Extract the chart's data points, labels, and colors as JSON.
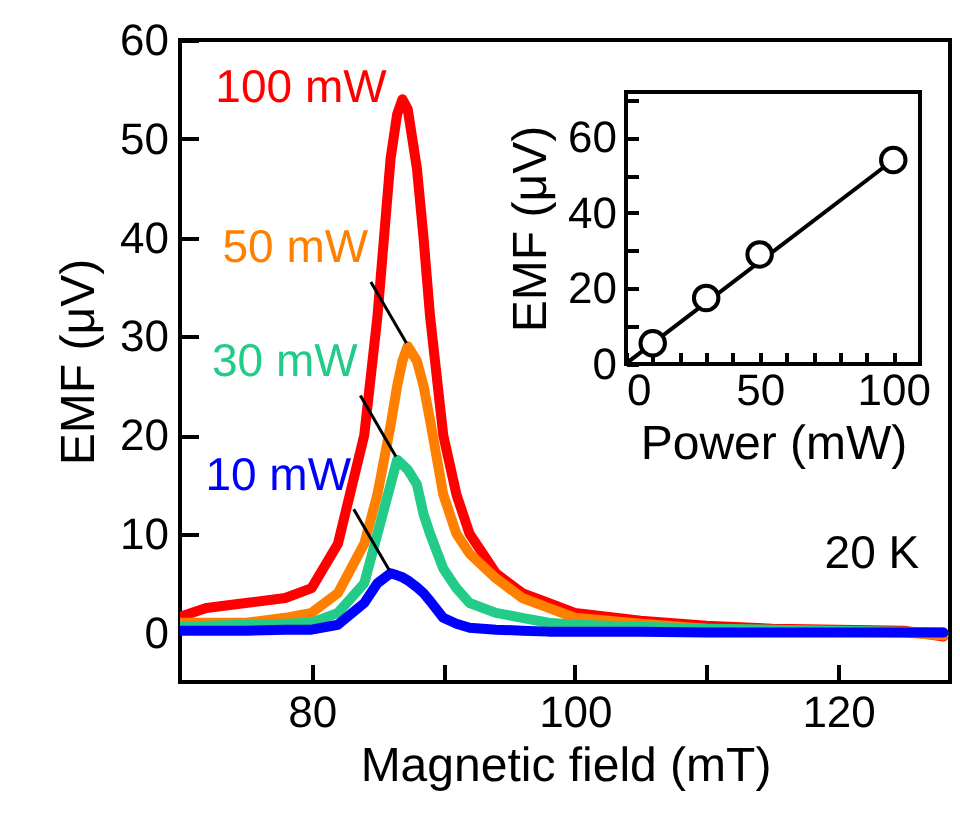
{
  "chart_data": [
    {
      "type": "line",
      "xlabel": "Magnetic field (mT)",
      "ylabel": "EMF (μV)",
      "xlim": [
        70,
        128.5
      ],
      "ylim": [
        -5,
        60
      ],
      "xticks": [
        80,
        {
          "value": 90,
          "label": null
        },
        100,
        {
          "value": 110,
          "label": null
        },
        120
      ],
      "yticks": [
        0,
        10,
        20,
        30,
        40,
        50,
        60
      ],
      "x": [
        70,
        72,
        75,
        78,
        80,
        82,
        84,
        85,
        86,
        86.5,
        86.9,
        87.3,
        88,
        88.5,
        89,
        90,
        91,
        92,
        94,
        96,
        98,
        100,
        105,
        110,
        115,
        120,
        125,
        128
      ],
      "series": [
        {
          "name": "100 mW",
          "color": "#ff0000",
          "values": [
            1.6,
            2.5,
            3,
            3.5,
            4.5,
            9,
            20,
            32,
            48,
            52.5,
            54,
            53,
            47,
            40,
            32,
            20,
            14,
            10,
            6,
            4,
            3,
            2,
            1.2,
            0.7,
            0.4,
            0.3,
            0.2,
            -0.4
          ]
        },
        {
          "name": "50 mW",
          "color": "#ff8000",
          "values": [
            1,
            1,
            1,
            1.5,
            2,
            4,
            9,
            14,
            21,
            25,
            27.5,
            29,
            27.5,
            25,
            21.5,
            14,
            10,
            8,
            5.5,
            3.5,
            2.5,
            1.5,
            0.9,
            0.4,
            0.2,
            0.1,
            0,
            -0.3
          ]
        },
        {
          "name": "30 mW",
          "color": "#22cc88",
          "values": [
            0.6,
            0.7,
            0.8,
            0.9,
            1,
            2,
            5,
            10,
            15,
            17.5,
            17,
            16.5,
            15,
            12,
            10,
            6.5,
            4.5,
            3,
            2,
            1.5,
            1,
            0.8,
            0.6,
            0.4,
            0.3,
            0.2,
            0.1,
            0
          ]
        },
        {
          "name": "10 mW",
          "color": "#0000ff",
          "values": [
            0.2,
            0.2,
            0.2,
            0.3,
            0.3,
            0.8,
            3,
            5,
            6,
            5.8,
            5.6,
            5.3,
            4.6,
            4,
            3.2,
            1.5,
            0.9,
            0.5,
            0.3,
            0.2,
            0.1,
            0.1,
            0.1,
            0,
            0,
            0,
            0,
            0
          ]
        }
      ],
      "line_style": "solid",
      "annotations": [
        "20 K"
      ]
    },
    {
      "type": "scatter",
      "xlabel": "Power (mW)",
      "ylabel": "EMF (μV)",
      "xlim": [
        0,
        110
      ],
      "ylim": [
        0,
        72
      ],
      "xticks": [
        0,
        {
          "value": 10,
          "label": null
        },
        {
          "value": 20,
          "label": null
        },
        {
          "value": 30,
          "label": null
        },
        {
          "value": 40,
          "label": null
        },
        50,
        {
          "value": 60,
          "label": null
        },
        {
          "value": 70,
          "label": null
        },
        {
          "value": 80,
          "label": null
        },
        {
          "value": 90,
          "label": null
        },
        100
      ],
      "yticks": [
        0,
        {
          "value": 10,
          "label": null
        },
        20,
        {
          "value": 30,
          "label": null
        },
        40,
        {
          "value": 50,
          "label": null
        },
        60,
        {
          "value": 70,
          "label": null
        }
      ],
      "series": [
        {
          "type": "scatter",
          "marker": "circle",
          "color": "#000000",
          "x": [
            10,
            30,
            50,
            100
          ],
          "values": [
            5.5,
            17.5,
            29,
            54
          ]
        },
        {
          "type": "line",
          "color": "#000000",
          "x": [
            0,
            100
          ],
          "values": [
            0.1,
            54
          ]
        }
      ]
    }
  ]
}
